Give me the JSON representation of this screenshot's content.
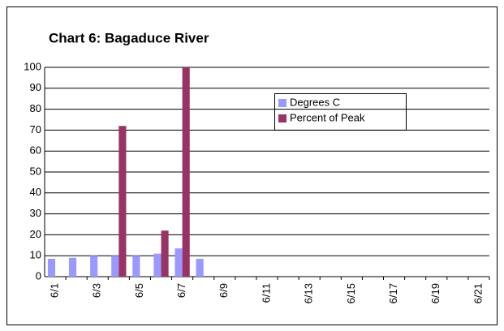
{
  "chart_data": {
    "type": "bar",
    "title": "Chart 6:  Bagaduce River",
    "categories": [
      "6/1",
      null,
      "6/3",
      null,
      "6/5",
      null,
      "6/7",
      null,
      "6/9",
      null,
      "6/11",
      null,
      "6/13",
      null,
      "6/15",
      null,
      "6/17",
      null,
      "6/19",
      null,
      "6/21"
    ],
    "series": [
      {
        "name": "Degrees C",
        "color": "#9999ff",
        "values": [
          8.5,
          9,
          10,
          10,
          10,
          11,
          13.5,
          8.5,
          null,
          null,
          null,
          null,
          null,
          null,
          null,
          null,
          null,
          null,
          null,
          null,
          null
        ]
      },
      {
        "name": "Percent of Peak",
        "color": "#993366",
        "values": [
          null,
          null,
          null,
          72,
          null,
          22,
          100,
          null,
          null,
          null,
          null,
          null,
          null,
          null,
          null,
          null,
          null,
          null,
          null,
          null,
          null
        ]
      }
    ],
    "ylim": [
      0,
      100
    ],
    "yticks": [
      0,
      10,
      20,
      30,
      40,
      50,
      60,
      70,
      80,
      90,
      100
    ],
    "grid": true
  }
}
